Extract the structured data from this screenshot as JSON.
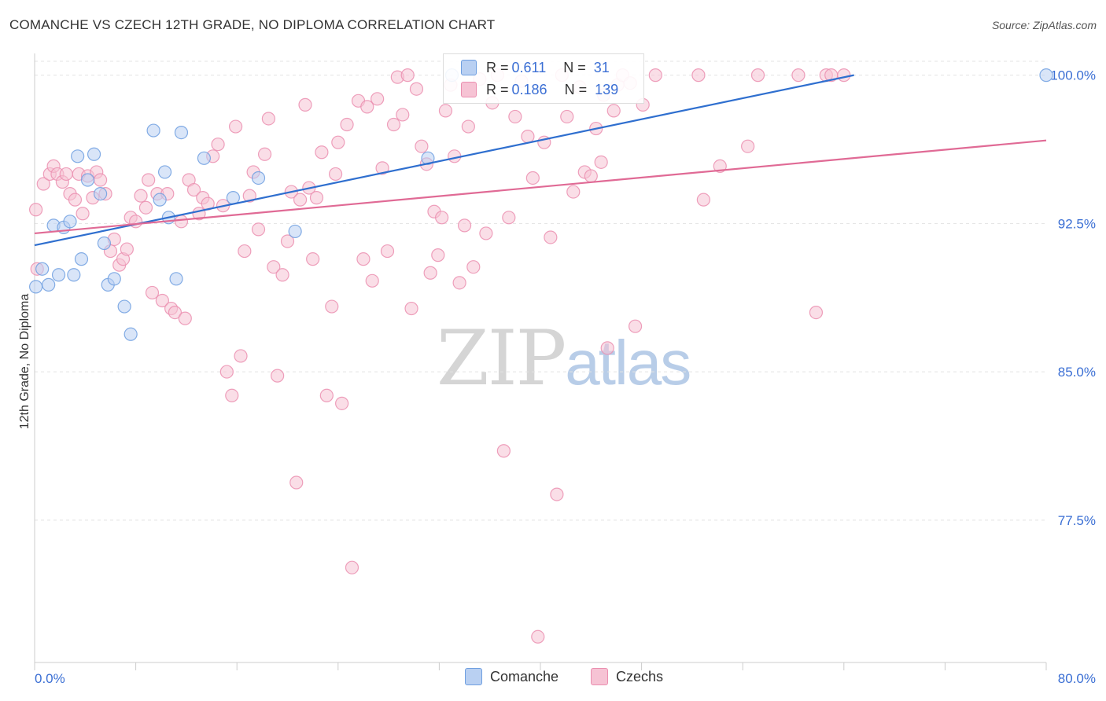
{
  "header": {
    "title": "COMANCHE VS CZECH 12TH GRADE, NO DIPLOMA CORRELATION CHART",
    "source": "Source: ZipAtlas.com"
  },
  "colors": {
    "blue": "#6f9fe0",
    "blue_fill": "#b9d0f2",
    "blue_line": "#2f6fcf",
    "pink": "#eb8fb0",
    "pink_fill": "#f6c3d4",
    "pink_line": "#e06a95",
    "axis_text": "#3b6fd4",
    "grid": "#e3e3e3"
  },
  "legend": {
    "r_label": "R =",
    "n_label": "N =",
    "comanche": {
      "r": "0.611",
      "n": "31"
    },
    "czechs": {
      "r": "0.186",
      "n": "139"
    }
  },
  "bottom_legend": {
    "comanche": "Comanche",
    "czechs": "Czechs"
  },
  "watermark": {
    "zip": "ZIP",
    "atlas": "atlas"
  },
  "chart_data": {
    "type": "scatter",
    "title": "COMANCHE VS CZECH 12TH GRADE, NO DIPLOMA CORRELATION CHART",
    "xlabel": "",
    "ylabel": "12th Grade, No Diploma",
    "xlim": [
      0,
      80
    ],
    "ylim": [
      70.3,
      100.7
    ],
    "x_tick_labels": [
      "0.0%",
      "80.0%"
    ],
    "y_ticks": [
      77.5,
      85.0,
      92.5,
      100.0
    ],
    "y_tick_labels": [
      "77.5%",
      "85.0%",
      "92.5%",
      "100.0%"
    ],
    "series": [
      {
        "name": "Comanche",
        "color": "blue",
        "trend": {
          "x": [
            0,
            64.8
          ],
          "y": [
            91.4,
            100.0
          ]
        },
        "points": [
          [
            0.1,
            89.3
          ],
          [
            0.6,
            90.2
          ],
          [
            1.1,
            89.4
          ],
          [
            1.5,
            92.4
          ],
          [
            1.9,
            89.9
          ],
          [
            2.3,
            92.3
          ],
          [
            2.8,
            92.6
          ],
          [
            3.1,
            89.9
          ],
          [
            3.4,
            95.9
          ],
          [
            3.7,
            90.7
          ],
          [
            4.2,
            94.7
          ],
          [
            4.7,
            96.0
          ],
          [
            5.2,
            94.0
          ],
          [
            5.5,
            91.5
          ],
          [
            5.8,
            89.4
          ],
          [
            6.3,
            89.7
          ],
          [
            7.1,
            88.3
          ],
          [
            7.6,
            86.9
          ],
          [
            9.4,
            97.2
          ],
          [
            9.9,
            93.7
          ],
          [
            10.3,
            95.1
          ],
          [
            10.6,
            92.8
          ],
          [
            11.2,
            89.7
          ],
          [
            11.6,
            97.1
          ],
          [
            13.4,
            95.8
          ],
          [
            15.7,
            93.8
          ],
          [
            17.7,
            94.8
          ],
          [
            20.6,
            92.1
          ],
          [
            31.1,
            95.8
          ],
          [
            33.0,
            100.0
          ],
          [
            80.0,
            100.0
          ]
        ]
      },
      {
        "name": "Czechs",
        "color": "pink",
        "trend": {
          "x": [
            0,
            80
          ],
          "y": [
            92.0,
            96.7
          ]
        },
        "points": [
          [
            0.1,
            93.2
          ],
          [
            0.2,
            90.2
          ],
          [
            0.7,
            94.5
          ],
          [
            1.2,
            95.0
          ],
          [
            1.5,
            95.4
          ],
          [
            1.8,
            95.0
          ],
          [
            2.2,
            94.6
          ],
          [
            2.5,
            95.0
          ],
          [
            2.8,
            94.0
          ],
          [
            3.2,
            93.7
          ],
          [
            3.5,
            95.0
          ],
          [
            3.8,
            93.0
          ],
          [
            4.2,
            94.9
          ],
          [
            4.6,
            93.8
          ],
          [
            4.9,
            95.1
          ],
          [
            5.2,
            94.7
          ],
          [
            5.6,
            94.0
          ],
          [
            6.0,
            91.1
          ],
          [
            6.3,
            91.7
          ],
          [
            6.7,
            90.4
          ],
          [
            7.0,
            90.7
          ],
          [
            7.3,
            91.2
          ],
          [
            7.6,
            92.8
          ],
          [
            8.0,
            92.6
          ],
          [
            8.4,
            93.9
          ],
          [
            8.8,
            93.3
          ],
          [
            9.0,
            94.7
          ],
          [
            9.3,
            89.0
          ],
          [
            9.7,
            94.0
          ],
          [
            10.1,
            88.6
          ],
          [
            10.5,
            94.0
          ],
          [
            10.8,
            88.2
          ],
          [
            11.1,
            88.0
          ],
          [
            11.6,
            92.6
          ],
          [
            11.9,
            87.7
          ],
          [
            12.2,
            94.7
          ],
          [
            12.6,
            94.2
          ],
          [
            13.0,
            93.0
          ],
          [
            13.3,
            93.8
          ],
          [
            13.7,
            93.5
          ],
          [
            14.1,
            95.9
          ],
          [
            14.5,
            96.5
          ],
          [
            14.9,
            93.4
          ],
          [
            15.2,
            85.0
          ],
          [
            15.6,
            83.8
          ],
          [
            15.9,
            97.4
          ],
          [
            16.3,
            85.8
          ],
          [
            16.6,
            91.1
          ],
          [
            17.0,
            93.9
          ],
          [
            17.3,
            95.1
          ],
          [
            17.7,
            92.2
          ],
          [
            18.2,
            96.0
          ],
          [
            18.5,
            97.8
          ],
          [
            18.9,
            90.3
          ],
          [
            19.2,
            84.8
          ],
          [
            19.6,
            89.9
          ],
          [
            20.0,
            91.6
          ],
          [
            20.3,
            94.1
          ],
          [
            20.7,
            79.4
          ],
          [
            21.0,
            93.7
          ],
          [
            21.4,
            98.5
          ],
          [
            21.7,
            94.3
          ],
          [
            22.0,
            90.7
          ],
          [
            22.3,
            93.8
          ],
          [
            22.7,
            96.1
          ],
          [
            23.1,
            83.8
          ],
          [
            23.5,
            88.3
          ],
          [
            23.8,
            95.0
          ],
          [
            24.0,
            96.6
          ],
          [
            24.3,
            83.4
          ],
          [
            24.7,
            97.5
          ],
          [
            25.1,
            75.1
          ],
          [
            25.6,
            98.7
          ],
          [
            26.0,
            90.7
          ],
          [
            26.3,
            98.4
          ],
          [
            26.7,
            89.6
          ],
          [
            27.1,
            98.8
          ],
          [
            27.5,
            95.3
          ],
          [
            27.9,
            91.1
          ],
          [
            28.4,
            97.5
          ],
          [
            28.7,
            99.9
          ],
          [
            29.1,
            98.0
          ],
          [
            29.5,
            100.0
          ],
          [
            29.8,
            88.2
          ],
          [
            30.2,
            99.3
          ],
          [
            30.6,
            96.4
          ],
          [
            31.0,
            95.5
          ],
          [
            31.3,
            90.0
          ],
          [
            31.6,
            93.1
          ],
          [
            31.9,
            90.9
          ],
          [
            32.2,
            92.8
          ],
          [
            32.5,
            98.2
          ],
          [
            32.9,
            99.5
          ],
          [
            33.2,
            95.9
          ],
          [
            33.6,
            89.5
          ],
          [
            34.0,
            92.4
          ],
          [
            34.3,
            97.4
          ],
          [
            34.7,
            90.3
          ],
          [
            35.2,
            99.8
          ],
          [
            35.7,
            92.0
          ],
          [
            36.2,
            98.6
          ],
          [
            36.6,
            100.0
          ],
          [
            37.1,
            81.0
          ],
          [
            37.5,
            92.8
          ],
          [
            38.0,
            97.9
          ],
          [
            38.5,
            99.7
          ],
          [
            39.0,
            96.9
          ],
          [
            39.4,
            94.8
          ],
          [
            39.8,
            71.6
          ],
          [
            40.3,
            96.6
          ],
          [
            40.8,
            91.8
          ],
          [
            41.3,
            78.8
          ],
          [
            41.7,
            100.0
          ],
          [
            42.1,
            97.9
          ],
          [
            42.6,
            94.1
          ],
          [
            43.1,
            99.4
          ],
          [
            43.5,
            95.1
          ],
          [
            44.0,
            94.9
          ],
          [
            44.4,
            97.3
          ],
          [
            44.8,
            95.6
          ],
          [
            45.3,
            86.2
          ],
          [
            45.8,
            98.2
          ],
          [
            46.1,
            99.5
          ],
          [
            46.5,
            100.0
          ],
          [
            47.1,
            99.6
          ],
          [
            47.5,
            87.3
          ],
          [
            49.1,
            100.0
          ],
          [
            52.5,
            100.0
          ],
          [
            52.9,
            93.7
          ],
          [
            54.2,
            95.4
          ],
          [
            56.4,
            96.4
          ],
          [
            57.2,
            100.0
          ],
          [
            60.4,
            100.0
          ],
          [
            61.8,
            88.0
          ],
          [
            62.6,
            100.0
          ],
          [
            63.0,
            100.0
          ],
          [
            64.0,
            100.0
          ],
          [
            48.1,
            98.5
          ],
          [
            45.0,
            99.0
          ]
        ]
      }
    ]
  }
}
